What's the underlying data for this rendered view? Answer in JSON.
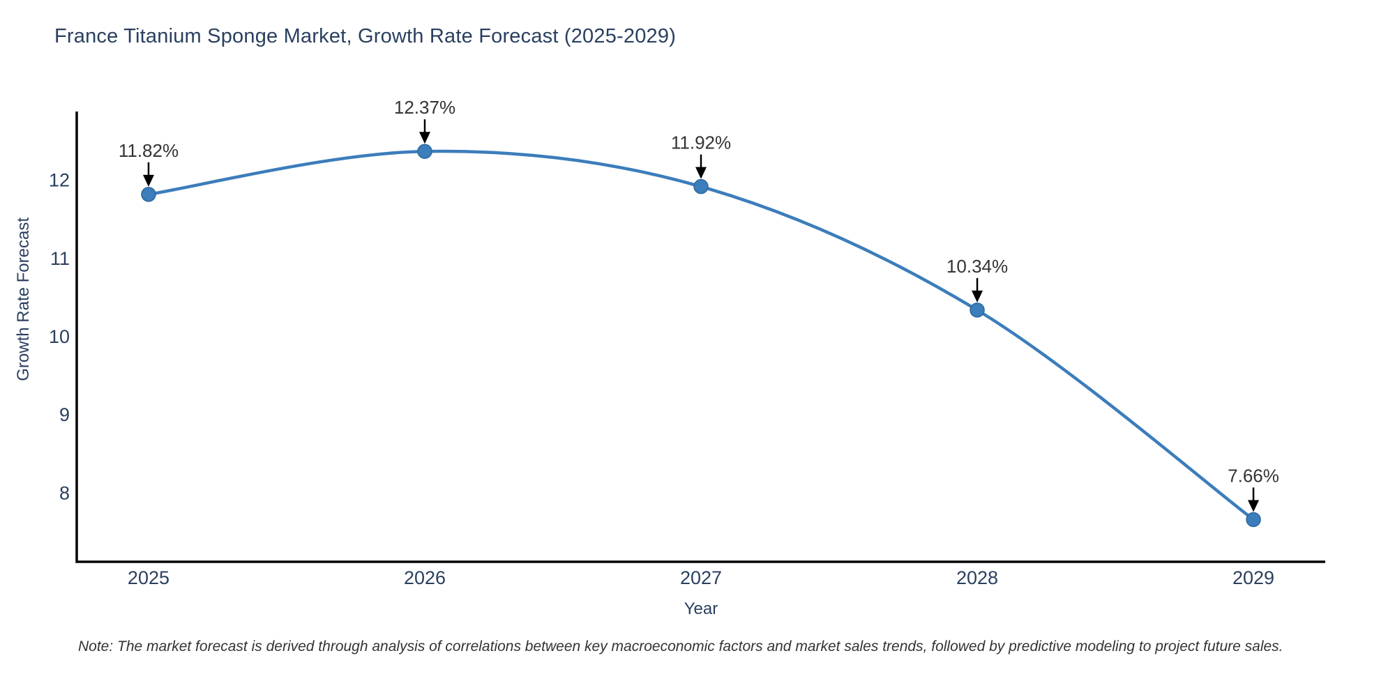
{
  "chart_data": {
    "type": "line",
    "title": "France Titanium Sponge Market, Growth Rate Forecast (2025-2029)",
    "xlabel": "Year",
    "ylabel": "Growth Rate Forecast",
    "x": [
      2025,
      2026,
      2027,
      2028,
      2029
    ],
    "y": [
      11.82,
      12.37,
      11.92,
      10.34,
      7.66
    ],
    "point_labels": [
      "11.82%",
      "12.37%",
      "11.92%",
      "10.34%",
      "7.66%"
    ],
    "series": [
      {
        "name": "Growth Rate Forecast",
        "values": [
          11.82,
          12.37,
          11.92,
          10.34,
          7.66
        ]
      }
    ],
    "xticks": [
      2025,
      2026,
      2027,
      2028,
      2029
    ],
    "yticks": [
      8,
      9,
      10,
      11,
      12
    ],
    "xlim": [
      2024.74,
      2029.26
    ],
    "ylim": [
      7.12,
      12.88
    ],
    "grid": false,
    "legend_position": "none",
    "line_shape": "spline",
    "colors": {
      "line": "#3c7dbb",
      "marker": "#3c7dbb",
      "marker_edge": "#2e679c",
      "annotation_arrow": "#000000",
      "annotation_text": "#333333",
      "axis_line": "#000000",
      "tick_text": "#2a3f5f",
      "title_text": "#2a3f5f",
      "background": "#ffffff"
    }
  },
  "note": {
    "text": "Note: The market forecast is derived through analysis of correlations between key macroeconomic factors and market sales trends, followed by predictive modeling to project future sales."
  }
}
